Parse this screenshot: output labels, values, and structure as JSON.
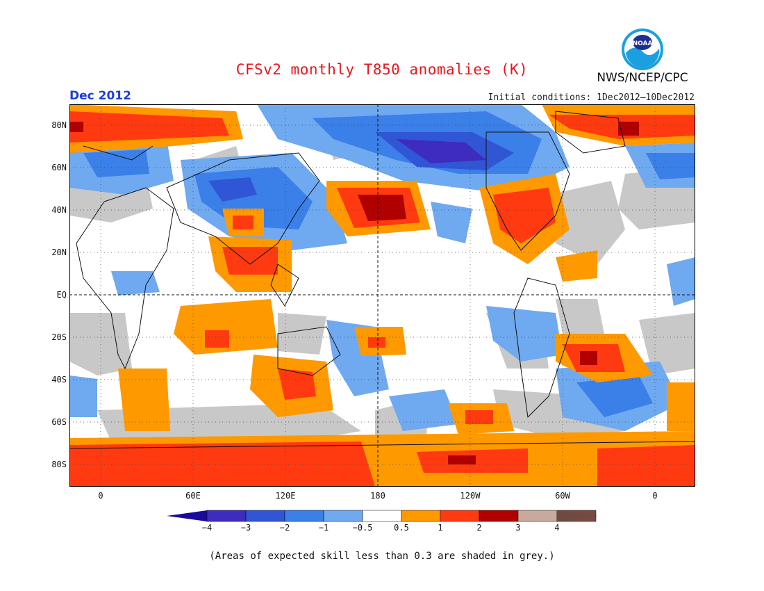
{
  "title": "CFSv2 monthly T850 anomalies (K)",
  "month_label": "Dec 2012",
  "initial_conditions": "Initial conditions: 1Dec2012–10Dec2012",
  "agency": "NWS/NCEP/CPC",
  "logo_text": "NOAA",
  "lat_labels": [
    "80N",
    "60N",
    "40N",
    "20N",
    "EQ",
    "20S",
    "40S",
    "60S",
    "80S"
  ],
  "lon_labels": [
    "0",
    "60E",
    "120E",
    "180",
    "120W",
    "60W",
    "0"
  ],
  "colorbar": {
    "ticks": [
      "−4",
      "−3",
      "−2",
      "−1",
      "−0.5",
      "0.5",
      "1",
      "2",
      "3",
      "4"
    ],
    "colors": [
      "#3e2bbf",
      "#3056d6",
      "#3b7fe8",
      "#6fa9f0",
      "#ffffff",
      "#ff9900",
      "#ff3a10",
      "#b00000",
      "#c8a99e",
      "#7a4a40"
    ],
    "under_color": "#1a0a9c",
    "over_color": "#6e4a42"
  },
  "skill_mask_color": "#c8c8c8",
  "footnote": "(Areas of expected skill less than 0.3 are shaded in grey.)"
}
